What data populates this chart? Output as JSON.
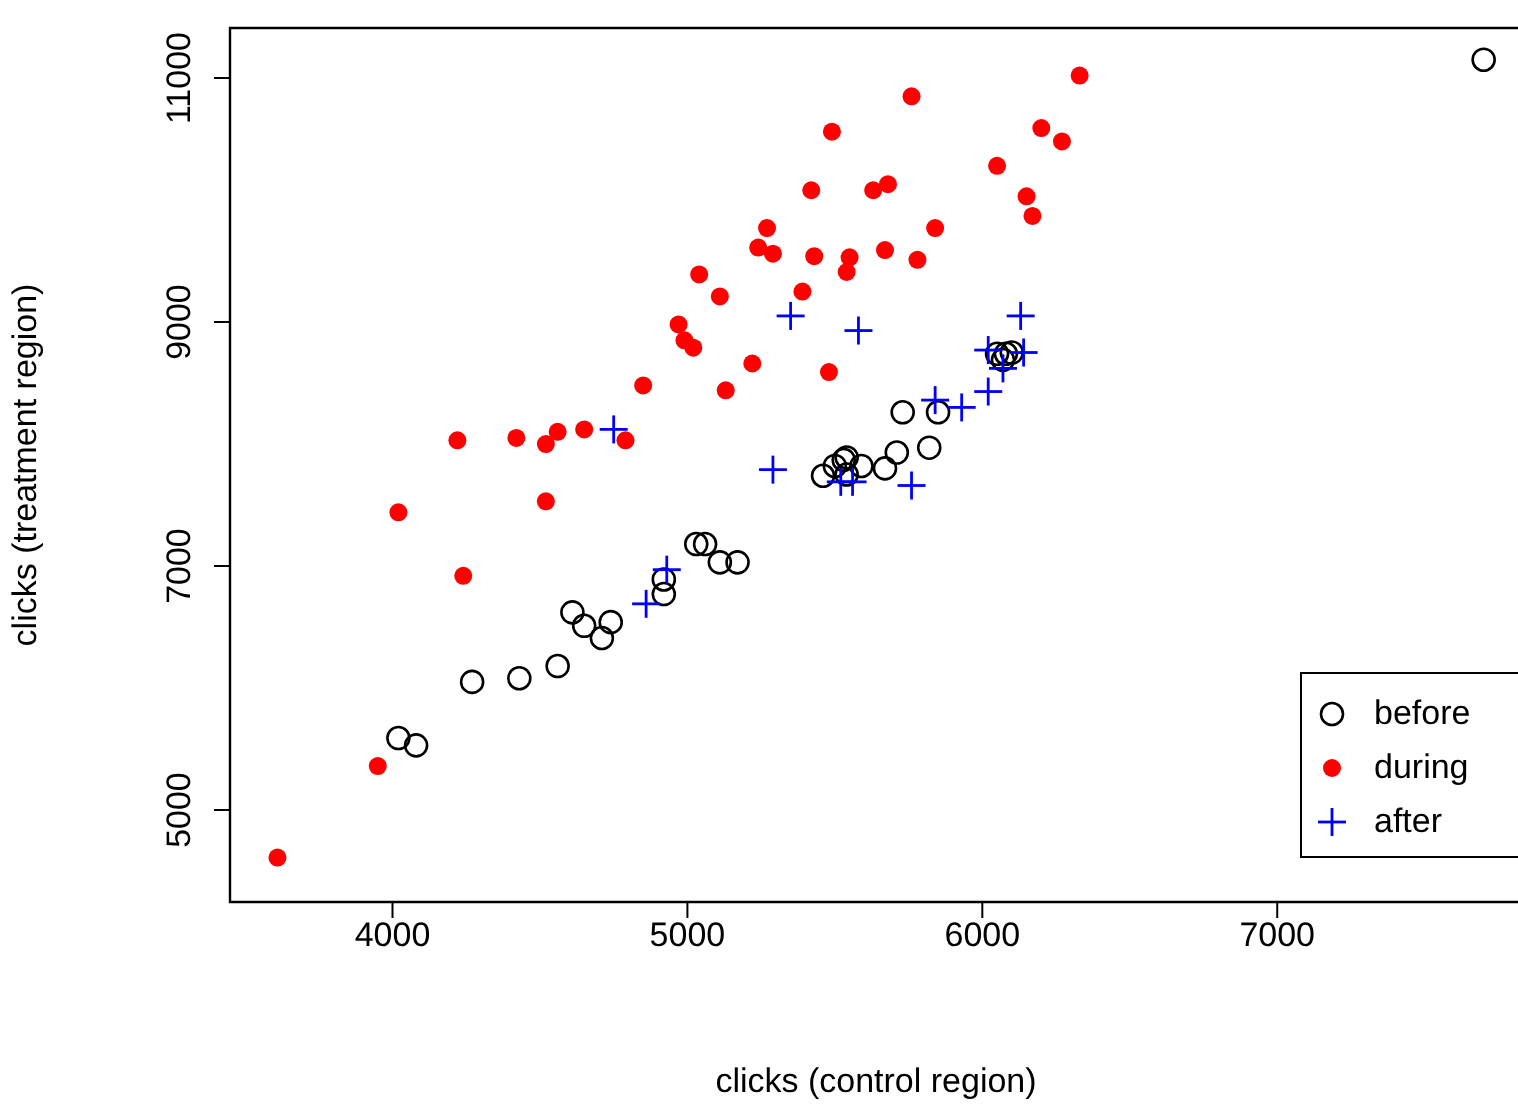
{
  "chart_data": {
    "type": "scatter",
    "xlabel": "clicks (control region)",
    "ylabel": "clicks (treatment region)",
    "xlim": [
      3449,
      7830
    ],
    "ylim": [
      4246,
      11410
    ],
    "xticks": [
      4000,
      5000,
      6000,
      7000
    ],
    "yticks": [
      5000,
      7000,
      9000,
      11000
    ],
    "legend": "bottom right",
    "series": [
      {
        "name": "before",
        "color": "#000000",
        "marker": "circle",
        "x": [
          7700,
          4020,
          4080,
          4270,
          4430,
          4560,
          4610,
          4650,
          4710,
          4740,
          4920,
          4920,
          5030,
          5060,
          5110,
          5170,
          5460,
          5500,
          5530,
          5540,
          5590,
          5540,
          5670,
          5710,
          5730,
          5820,
          5850,
          6050,
          6080,
          6100,
          6070
        ],
        "values": [
          11150,
          5590,
          5530,
          6050,
          6080,
          6180,
          6620,
          6510,
          6410,
          6540,
          6890,
          6770,
          7180,
          7180,
          7030,
          7030,
          7740,
          7820,
          7870,
          7890,
          7820,
          7750,
          7800,
          7930,
          8260,
          7970,
          8260,
          8740,
          8740,
          8750,
          8690
        ]
      },
      {
        "name": "during",
        "color": "#ff0000",
        "marker": "circle",
        "x": [
          3610,
          3950,
          4020,
          4240,
          4220,
          4420,
          4520,
          4520,
          4560,
          4650,
          4790,
          4850,
          4970,
          4990,
          5020,
          5040,
          5110,
          5130,
          5220,
          5240,
          5270,
          5290,
          5390,
          5420,
          5430,
          5480,
          5490,
          5540,
          5550,
          5630,
          5680,
          5670,
          5760,
          5780,
          5840,
          6050,
          6150,
          6170,
          6200,
          6270,
          6330
        ],
        "values": [
          4610,
          5360,
          7440,
          6920,
          8030,
          8050,
          8000,
          7530,
          8100,
          8120,
          8030,
          8480,
          8980,
          8850,
          8790,
          9390,
          9210,
          8440,
          8660,
          9610,
          9770,
          9560,
          9250,
          10080,
          9540,
          8590,
          10560,
          9410,
          9530,
          10080,
          10130,
          9590,
          10850,
          9510,
          9770,
          10280,
          10030,
          9870,
          10590,
          10480,
          11020
        ]
      },
      {
        "name": "after",
        "color": "#0000ff",
        "marker": "cross",
        "x": [
          4750,
          4860,
          4930,
          5290,
          5350,
          5580,
          5520,
          5560,
          5760,
          5840,
          5930,
          6020,
          6020,
          6070,
          6140,
          6130
        ],
        "values": [
          8120,
          6690,
          6970,
          7790,
          9050,
          8930,
          7690,
          7690,
          7660,
          8360,
          8300,
          8430,
          8770,
          8620,
          8750,
          9050
        ]
      }
    ]
  }
}
